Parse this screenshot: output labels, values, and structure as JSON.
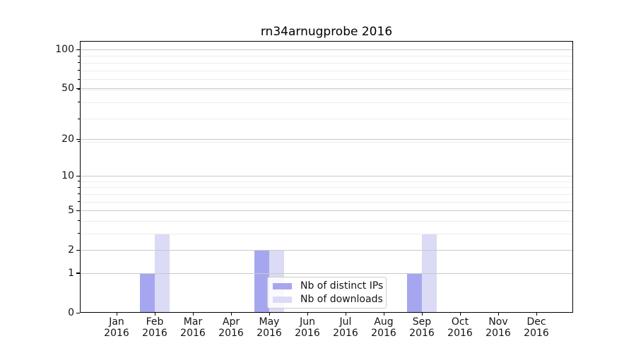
{
  "chart_data": {
    "type": "bar",
    "title": "rn34arnugprobe 2016",
    "yscale": "log10(1+y)",
    "months": [
      "Jan",
      "Feb",
      "Mar",
      "Apr",
      "May",
      "Jun",
      "Jul",
      "Aug",
      "Sep",
      "Oct",
      "Nov",
      "Dec"
    ],
    "year_label": "2016",
    "series": [
      {
        "name": "Nb of distinct IPs",
        "color": "#a6a6f0",
        "values": [
          0,
          1,
          0,
          0,
          2,
          0,
          0,
          0,
          1,
          0,
          0,
          0
        ]
      },
      {
        "name": "Nb of downloads",
        "color": "#dbdbf6",
        "values": [
          0,
          3,
          0,
          0,
          2,
          0,
          0,
          0,
          3,
          0,
          0,
          0
        ]
      }
    ],
    "y_major_ticks": [
      0,
      1,
      2,
      5,
      10,
      20,
      50,
      100
    ],
    "y_minor_ticks": [
      3,
      4,
      6,
      7,
      8,
      9,
      19,
      29,
      39,
      49,
      59,
      69,
      79,
      89
    ],
    "ylim": [
      0,
      116
    ],
    "grid": "horizontal",
    "legend_position": "lower-center-inside"
  },
  "legend": {
    "items": [
      {
        "label": "Nb of distinct IPs",
        "color": "#a6a6f0"
      },
      {
        "label": "Nb of downloads",
        "color": "#dbdbf6"
      }
    ]
  },
  "colors": {
    "background": "#ffffff",
    "bar_distinct_ips": "#a6a6f0",
    "bar_downloads": "#dbdbf6",
    "grid_major": "#c9c9c9",
    "grid_minor": "#ececec",
    "spine": "#000000",
    "text": "#141414"
  }
}
